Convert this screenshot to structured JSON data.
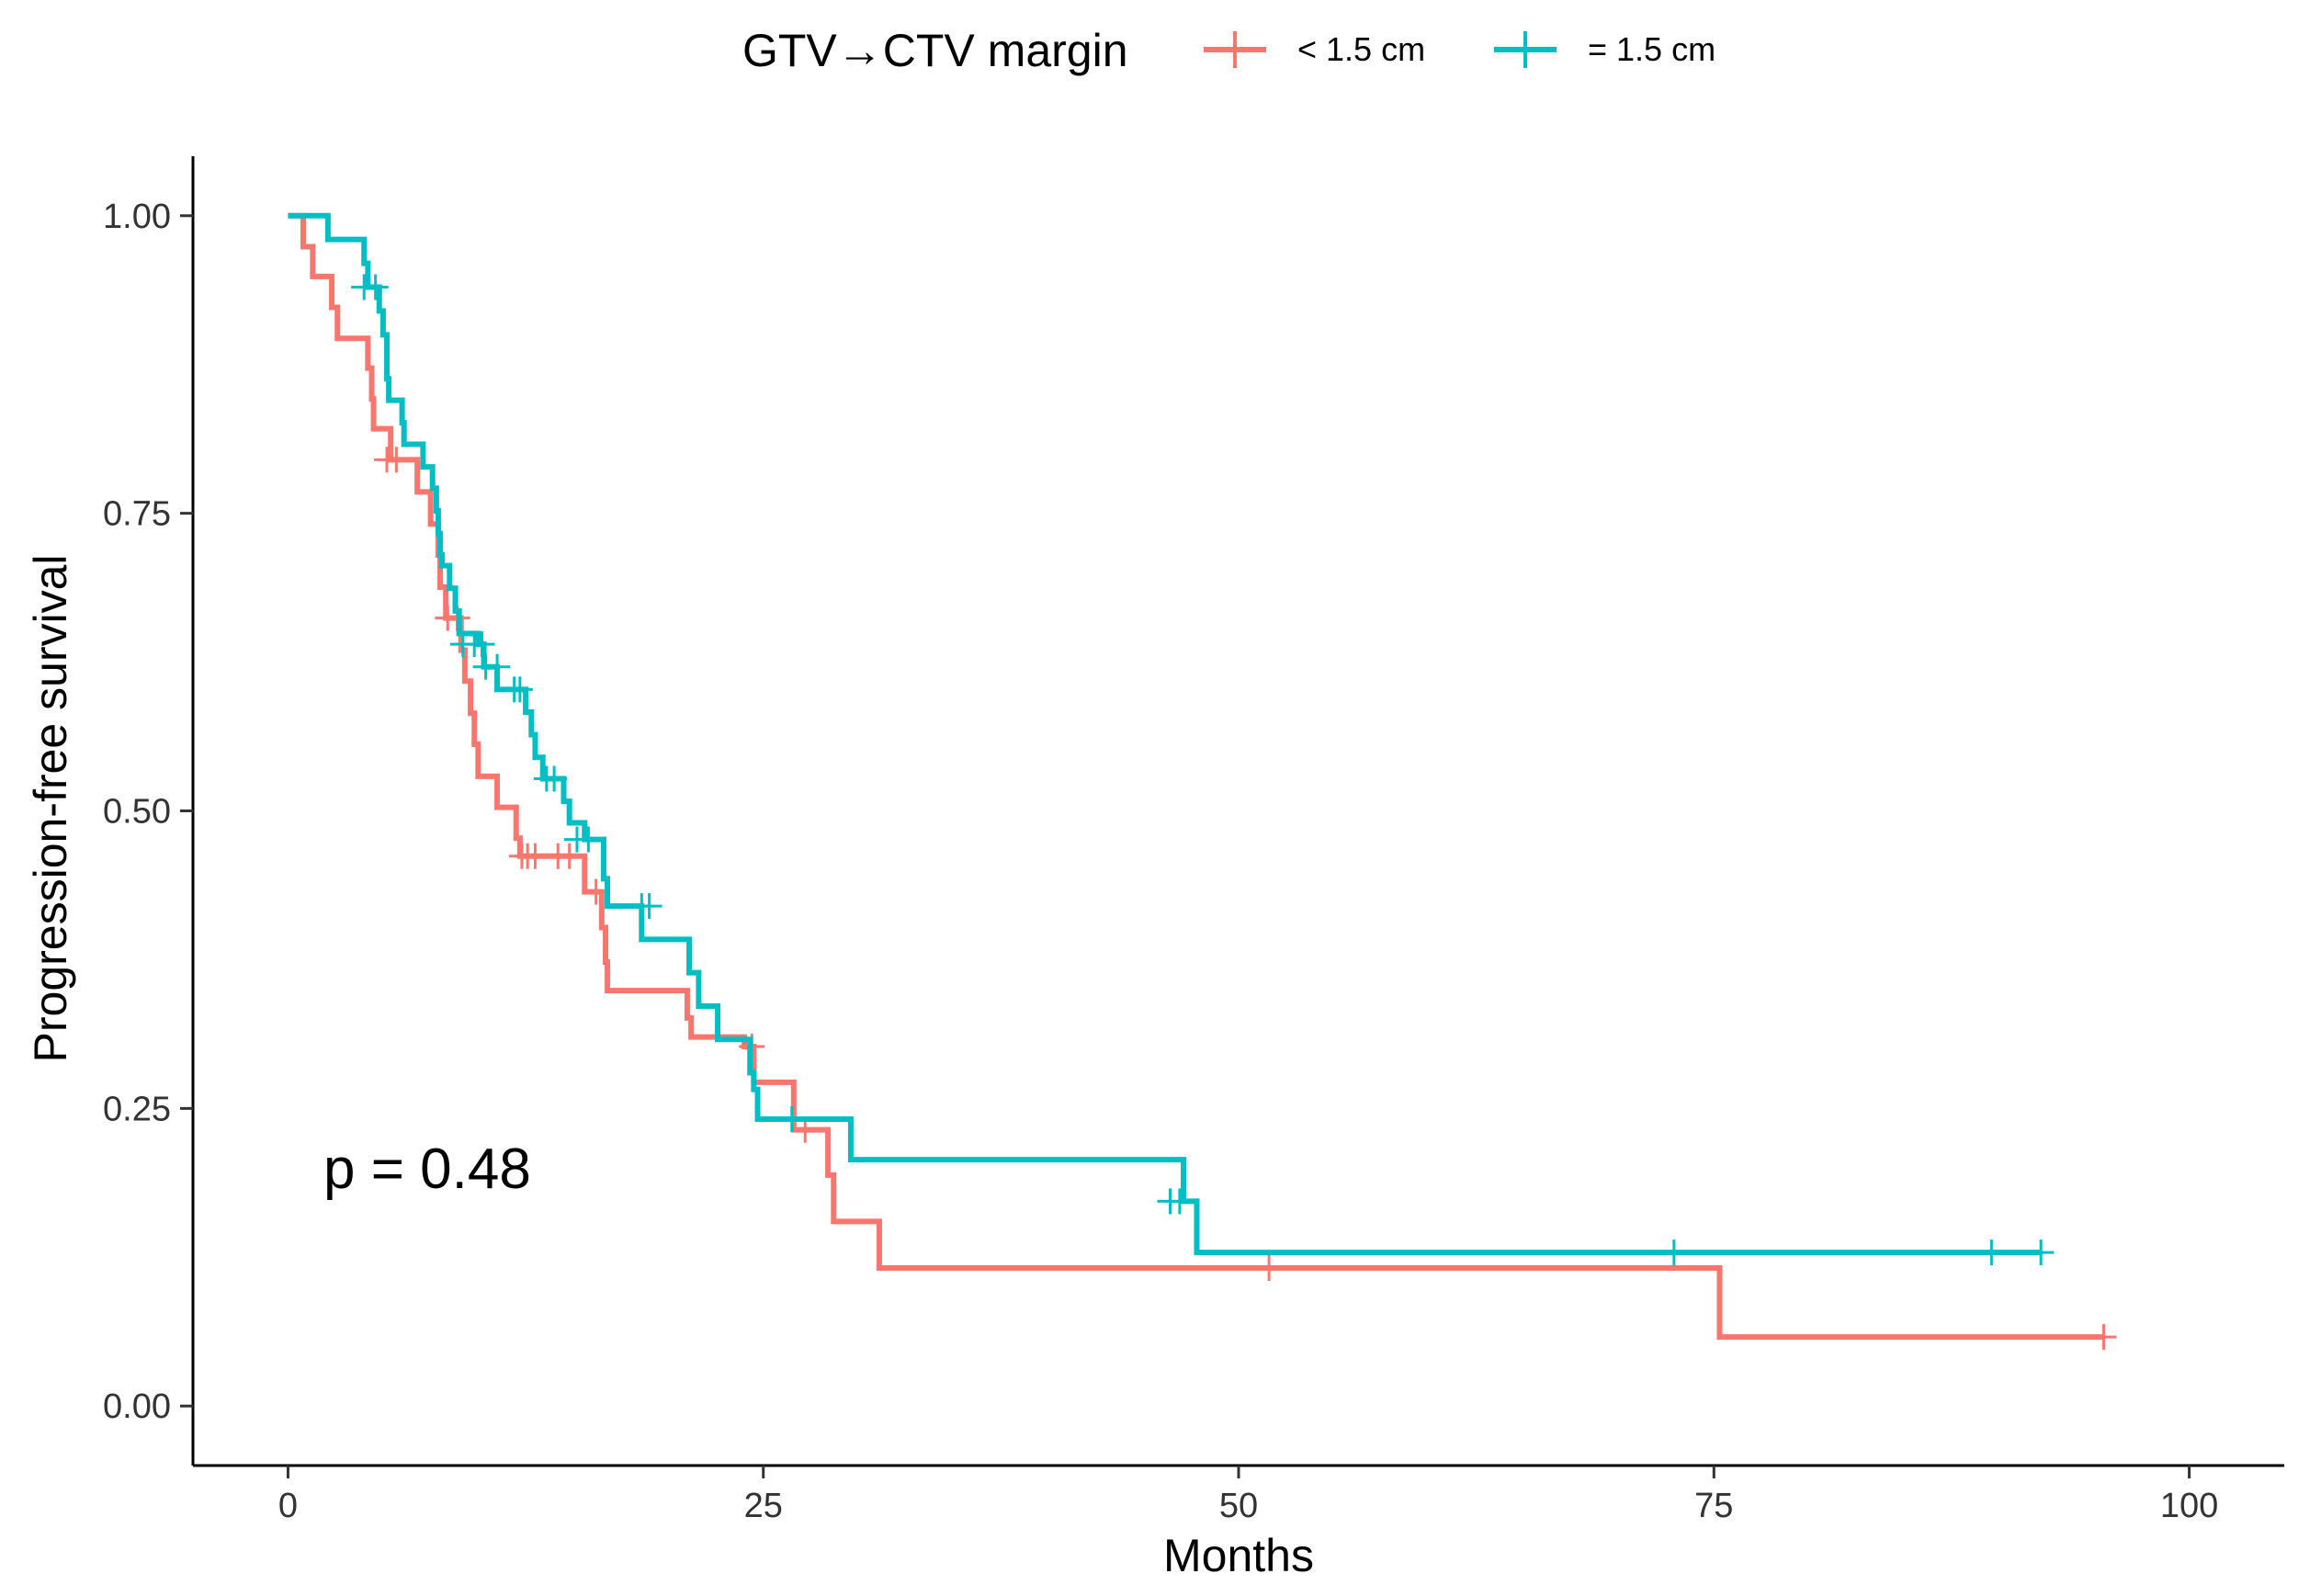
{
  "chart_data": {
    "type": "line",
    "subtype": "kaplan-meier-step",
    "title": "",
    "xlabel": "Months",
    "ylabel": "Progression-free survival",
    "xlim": [
      -5,
      105
    ],
    "ylim": [
      -0.05,
      1.05
    ],
    "x_ticks": [
      0,
      25,
      50,
      75,
      100
    ],
    "x_tick_labels": [
      "0",
      "25",
      "50",
      "75",
      "100"
    ],
    "y_ticks": [
      0,
      0.25,
      0.5,
      0.75,
      1.0
    ],
    "y_tick_labels": [
      "0.00",
      "0.25",
      "0.50",
      "0.75",
      "1.00"
    ],
    "grid": false,
    "legend": {
      "title": "GTV→CTV margin",
      "position": "top"
    },
    "annotation": "p = 0.48",
    "series": [
      {
        "name": "< 1.5 cm",
        "legend_label": "< 1.5 cm",
        "color": "#F8766D",
        "steps": [
          [
            0,
            1.0
          ],
          [
            0.8,
            0.974
          ],
          [
            1.3,
            0.949
          ],
          [
            2.3,
            0.923
          ],
          [
            2.6,
            0.897
          ],
          [
            4.2,
            0.872
          ],
          [
            4.4,
            0.846
          ],
          [
            4.5,
            0.821
          ],
          [
            5.4,
            0.795
          ],
          [
            6.3,
            0.795
          ],
          [
            6.8,
            0.768
          ],
          [
            7.5,
            0.741
          ],
          [
            7.9,
            0.715
          ],
          [
            8.0,
            0.688
          ],
          [
            8.3,
            0.662
          ],
          [
            9.1,
            0.635
          ],
          [
            9.3,
            0.609
          ],
          [
            9.6,
            0.582
          ],
          [
            9.8,
            0.556
          ],
          [
            10.0,
            0.529
          ],
          [
            11.0,
            0.503
          ],
          [
            12.0,
            0.477
          ],
          [
            12.2,
            0.462
          ],
          [
            15.6,
            0.432
          ],
          [
            16.5,
            0.402
          ],
          [
            16.7,
            0.373
          ],
          [
            16.8,
            0.349
          ],
          [
            21.0,
            0.326
          ],
          [
            21.2,
            0.31
          ],
          [
            24.0,
            0.302
          ],
          [
            24.5,
            0.272
          ],
          [
            26.0,
            0.272
          ],
          [
            26.6,
            0.232
          ],
          [
            28.4,
            0.194
          ],
          [
            28.7,
            0.155
          ],
          [
            31.1,
            0.116
          ],
          [
            75.3,
            0.058
          ],
          [
            95.5,
            0.058
          ]
        ],
        "censored": [
          [
            5.2,
            0.795
          ],
          [
            5.7,
            0.795
          ],
          [
            8.4,
            0.662
          ],
          [
            8.9,
            0.662
          ],
          [
            12.3,
            0.462
          ],
          [
            12.6,
            0.462
          ],
          [
            13.0,
            0.462
          ],
          [
            14.2,
            0.462
          ],
          [
            14.8,
            0.462
          ],
          [
            16.2,
            0.432
          ],
          [
            24.4,
            0.302
          ],
          [
            27.2,
            0.232
          ],
          [
            51.6,
            0.116
          ],
          [
            95.5,
            0.058
          ]
        ]
      },
      {
        "name": "= 1.5 cm",
        "legend_label": "= 1.5 cm",
        "color": "#00BFC4",
        "steps": [
          [
            0,
            1.0
          ],
          [
            2.1,
            0.98
          ],
          [
            4.0,
            0.96
          ],
          [
            4.2,
            0.94
          ],
          [
            4.8,
            0.92
          ],
          [
            5.0,
            0.9
          ],
          [
            5.2,
            0.863
          ],
          [
            5.3,
            0.845
          ],
          [
            6.0,
            0.826
          ],
          [
            6.1,
            0.808
          ],
          [
            7.1,
            0.789
          ],
          [
            7.6,
            0.771
          ],
          [
            7.8,
            0.752
          ],
          [
            7.9,
            0.733
          ],
          [
            8.0,
            0.715
          ],
          [
            8.1,
            0.706
          ],
          [
            8.5,
            0.687
          ],
          [
            8.8,
            0.668
          ],
          [
            9.0,
            0.649
          ],
          [
            10.0,
            0.64
          ],
          [
            10.3,
            0.621
          ],
          [
            11.0,
            0.602
          ],
          [
            12.5,
            0.583
          ],
          [
            12.8,
            0.564
          ],
          [
            13.0,
            0.545
          ],
          [
            13.4,
            0.527
          ],
          [
            14.5,
            0.508
          ],
          [
            14.8,
            0.49
          ],
          [
            15.6,
            0.476
          ],
          [
            16.2,
            0.476
          ],
          [
            16.6,
            0.443
          ],
          [
            16.8,
            0.42
          ],
          [
            18.6,
            0.392
          ],
          [
            21.1,
            0.364
          ],
          [
            21.6,
            0.336
          ],
          [
            22.6,
            0.308
          ],
          [
            24.3,
            0.28
          ],
          [
            24.5,
            0.266
          ],
          [
            24.7,
            0.241
          ],
          [
            29.6,
            0.207
          ],
          [
            47.1,
            0.172
          ],
          [
            47.8,
            0.129
          ],
          [
            92.2,
            0.129
          ]
        ],
        "censored": [
          [
            4.0,
            0.94
          ],
          [
            4.6,
            0.94
          ],
          [
            9.2,
            0.64
          ],
          [
            9.8,
            0.64
          ],
          [
            10.2,
            0.64
          ],
          [
            10.4,
            0.621
          ],
          [
            11.0,
            0.621
          ],
          [
            11.9,
            0.602
          ],
          [
            12.2,
            0.602
          ],
          [
            13.6,
            0.527
          ],
          [
            14.0,
            0.527
          ],
          [
            15.2,
            0.476
          ],
          [
            15.8,
            0.476
          ],
          [
            18.6,
            0.42
          ],
          [
            19.0,
            0.42
          ],
          [
            26.5,
            0.241
          ],
          [
            46.4,
            0.172
          ],
          [
            46.9,
            0.172
          ],
          [
            72.9,
            0.129
          ],
          [
            89.6,
            0.129
          ],
          [
            92.2,
            0.129
          ]
        ]
      }
    ]
  }
}
